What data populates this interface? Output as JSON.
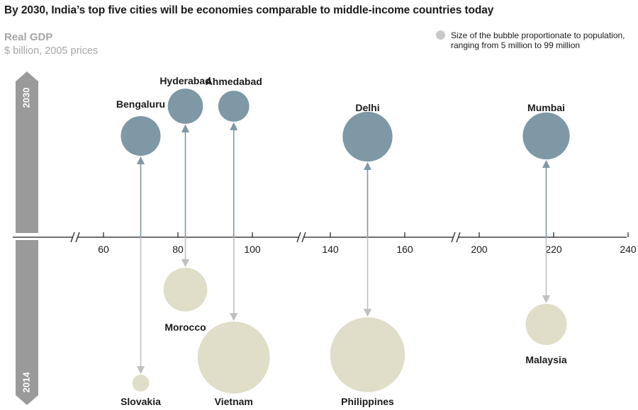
{
  "title": "By 2030, India’s top five cities will be economies comparable to middle-income countries today",
  "ylabel": "Real GDP",
  "yunit": "$ billion, 2005 prices",
  "legend_text_line1": "Size of the bubble proportionate to population,",
  "legend_text_line2": "ranging from 5 million to 99 million",
  "colors": {
    "city": "#7f98a5",
    "country": "#e0ddc8",
    "axis": "#1a1a1a",
    "bar": "#9a9a9a",
    "arrow_city": "#7f98a5",
    "arrow_country": "#c0c0c0"
  },
  "timeline": {
    "top_label": "2030",
    "bottom_label": "2014"
  },
  "chart_data": {
    "type": "scatter",
    "x_ticks": [
      60,
      80,
      100,
      140,
      160,
      200,
      220,
      240
    ],
    "axis_breaks": true,
    "series": [
      {
        "name": "2030",
        "points": [
          {
            "label": "Hyderabad",
            "x": 82,
            "population_m": 22
          },
          {
            "label": "Bengaluru",
            "x": 70,
            "population_m": 28
          },
          {
            "label": "Ahmedabad",
            "x": 95,
            "population_m": 17
          },
          {
            "label": "Delhi",
            "x": 150,
            "population_m": 44
          },
          {
            "label": "Mumbai",
            "x": 218,
            "population_m": 39
          }
        ]
      },
      {
        "name": "2014",
        "points": [
          {
            "label": "Morocco",
            "x": 82,
            "population_m": 34
          },
          {
            "label": "Slovakia",
            "x": 70,
            "population_m": 5
          },
          {
            "label": "Vietnam",
            "x": 95,
            "population_m": 92
          },
          {
            "label": "Philippines",
            "x": 150,
            "population_m": 99
          },
          {
            "label": "Malaysia",
            "x": 218,
            "population_m": 30
          }
        ]
      }
    ]
  }
}
